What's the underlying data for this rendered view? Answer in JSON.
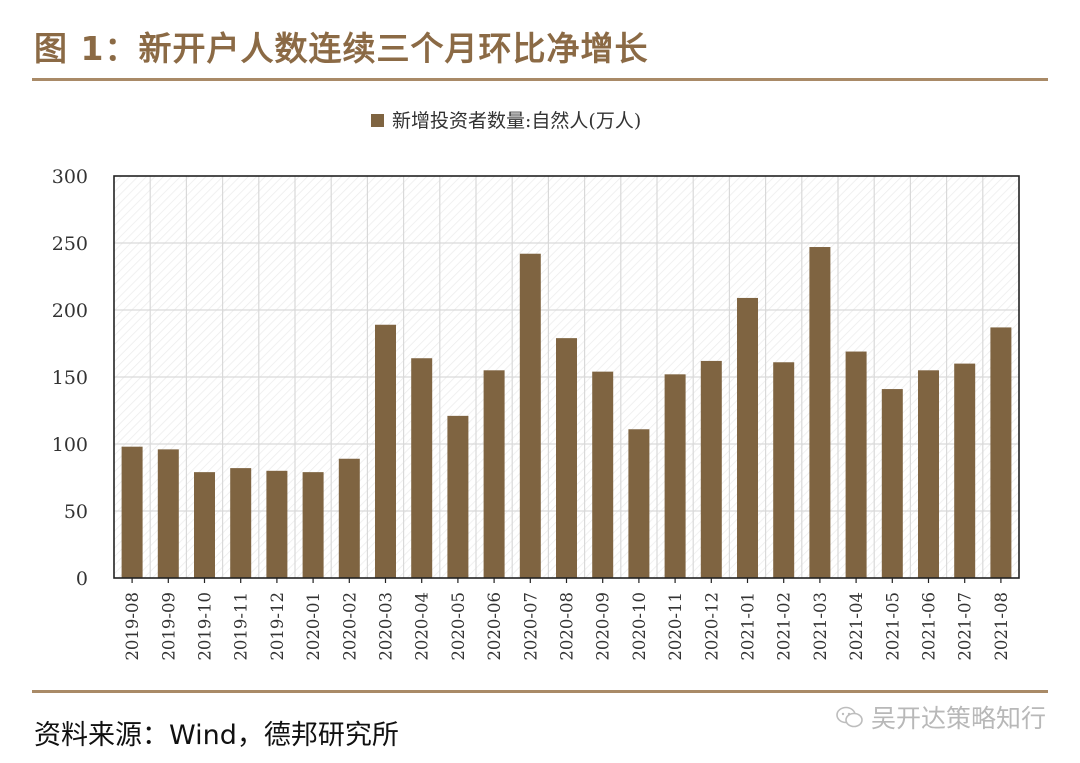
{
  "figure": {
    "title": "图 1：新开户人数连续三个月环比净增长",
    "source": "资料来源：Wind，德邦研究所",
    "watermark": "吴开达策略知行",
    "watermark_icon": "wechat-icon"
  },
  "colors": {
    "bar": "#7f6441",
    "title": "#8b6a45",
    "rule": "#a98a67",
    "grid": "#d9d9d9"
  },
  "chart_data": {
    "type": "bar",
    "title": "",
    "legend": "新增投资者数量:自然人(万人)",
    "legend_position": "top-center",
    "xlabel": "",
    "ylabel": "",
    "ylim": [
      0,
      300
    ],
    "yticks": [
      0,
      50,
      100,
      150,
      200,
      250,
      300
    ],
    "grid": true,
    "categories": [
      "2019-08",
      "2019-09",
      "2019-10",
      "2019-11",
      "2019-12",
      "2020-01",
      "2020-02",
      "2020-03",
      "2020-04",
      "2020-05",
      "2020-06",
      "2020-07",
      "2020-08",
      "2020-09",
      "2020-10",
      "2020-11",
      "2020-12",
      "2021-01",
      "2021-02",
      "2021-03",
      "2021-04",
      "2021-05",
      "2021-06",
      "2021-07",
      "2021-08"
    ],
    "series": [
      {
        "name": "新增投资者数量:自然人(万人)",
        "values": [
          98,
          96,
          79,
          82,
          80,
          79,
          89,
          189,
          164,
          121,
          155,
          242,
          179,
          154,
          111,
          152,
          162,
          209,
          161,
          247,
          169,
          141,
          155,
          160,
          187
        ]
      }
    ]
  }
}
